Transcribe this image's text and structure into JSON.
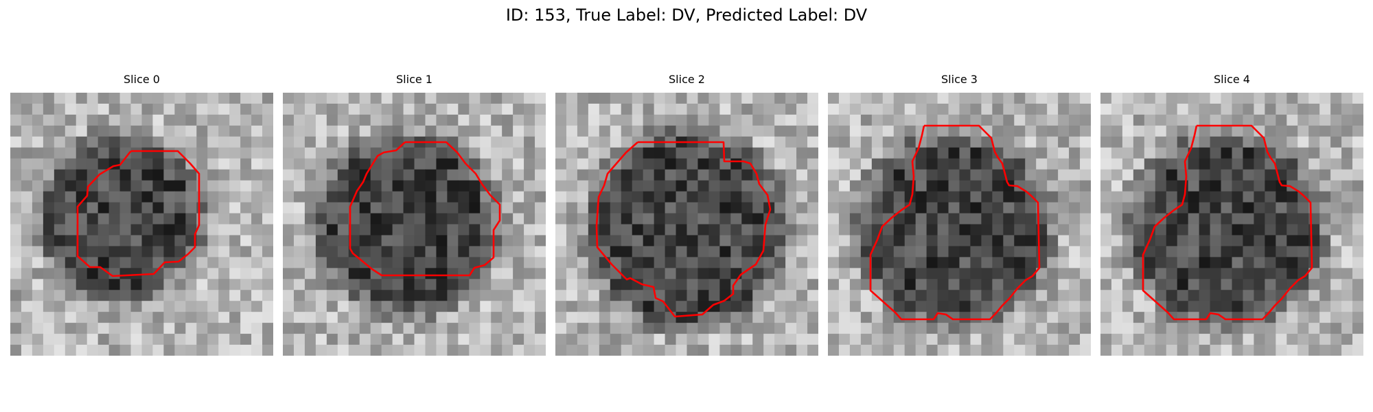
{
  "figure": {
    "title": "ID: 153, True Label: DV, Predicted Label: DV",
    "overlay_color": "#ff0000"
  },
  "slices": [
    {
      "title": "Slice 0"
    },
    {
      "title": "Slice 1"
    },
    {
      "title": "Slice 2"
    },
    {
      "title": "Slice 3"
    },
    {
      "title": "Slice 4"
    }
  ]
}
